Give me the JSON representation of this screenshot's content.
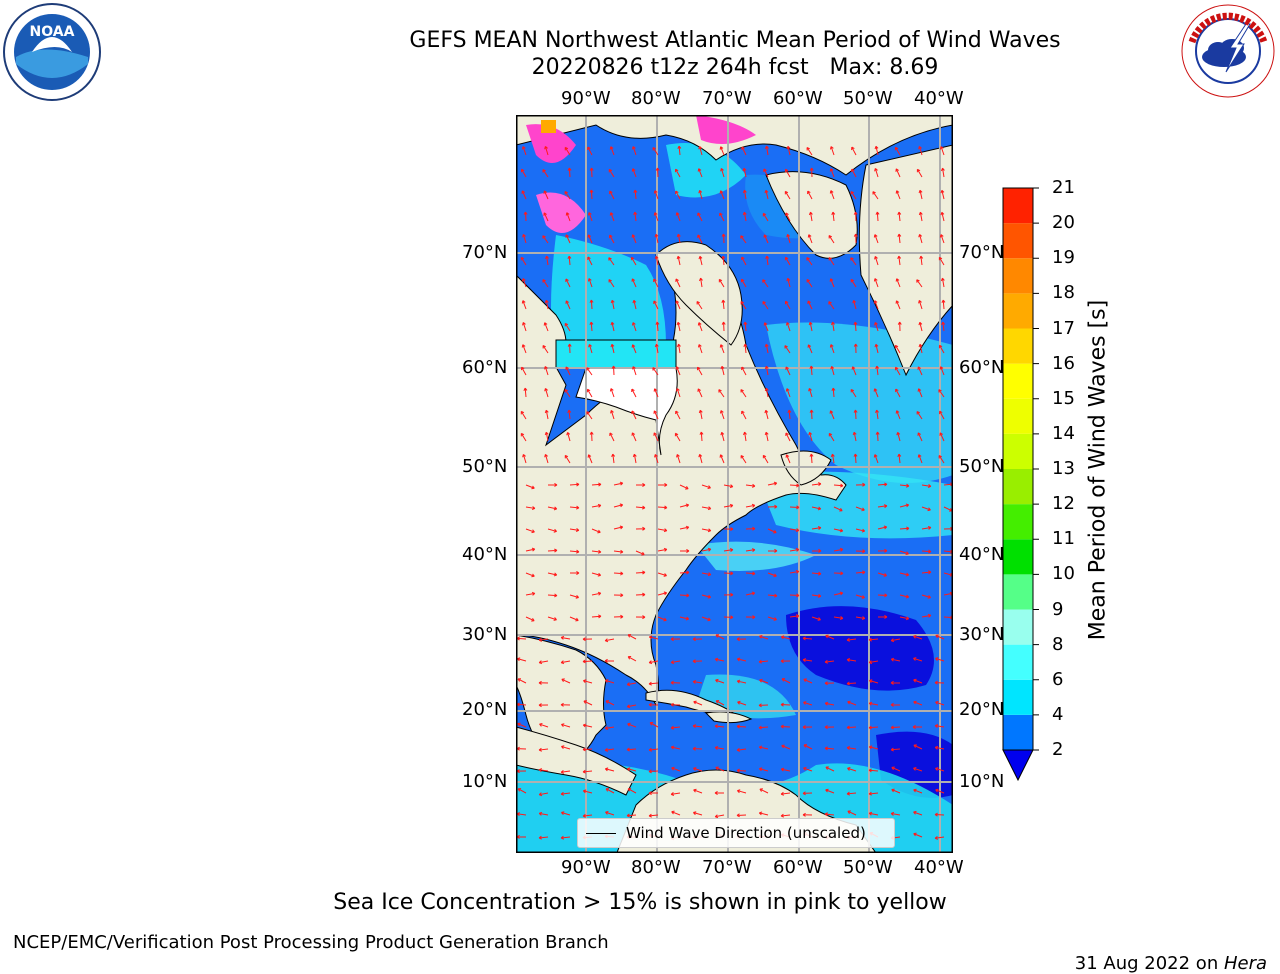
{
  "title": {
    "line1": "GEFS MEAN Northwest Atlantic Mean Period of Wind Waves",
    "line2": "20220826 t12z 264h fcst   Max: 8.69"
  },
  "lon_labels": [
    "90°W",
    "80°W",
    "70°W",
    "60°W",
    "50°W",
    "40°W"
  ],
  "lat_labels": [
    "70°N",
    "60°N",
    "50°N",
    "40°N",
    "30°N",
    "20°N",
    "10°N"
  ],
  "colorbar": {
    "label": "Mean Period of Wind Waves [s]",
    "ticks": [
      "2",
      "4",
      "6",
      "8",
      "9",
      "10",
      "11",
      "12",
      "13",
      "14",
      "15",
      "16",
      "17",
      "18",
      "19",
      "20",
      "21"
    ],
    "colors": [
      "#0077ff",
      "#00e5ff",
      "#44ffff",
      "#99ffee",
      "#55ff88",
      "#00e000",
      "#44ee00",
      "#99ee00",
      "#ccff00",
      "#eeff00",
      "#ffff00",
      "#ffd700",
      "#ffaa00",
      "#ff8800",
      "#ff5500",
      "#ff2200"
    ],
    "extend_color": "#0000ee"
  },
  "legend": {
    "label": "Wind Wave Direction (unscaled)"
  },
  "ice_note": "Sea Ice Concentration > 15% is shown in pink to yellow",
  "footer": {
    "left": "NCEP/EMC/Verification Post Processing Product Generation Branch",
    "right_date": "31 Aug 2022 on ",
    "right_host": "Hera"
  },
  "logos": {
    "left": "noaa-logo",
    "right": "national-weather-service-logo"
  }
}
